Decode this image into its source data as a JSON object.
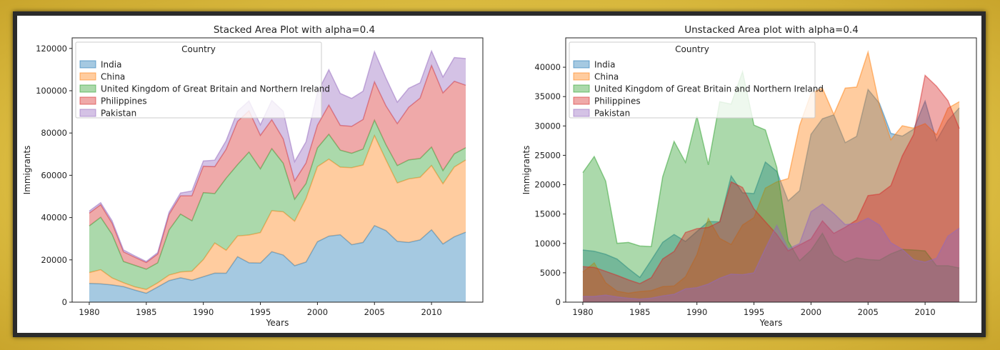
{
  "chart_data": [
    {
      "type": "area",
      "stacked": true,
      "alpha": 0.4,
      "title": "Stacked Area Plot with alpha=0.4",
      "xlabel": "Years",
      "ylabel": "Immigrants",
      "xlim": [
        1978.5,
        2014.5
      ],
      "ylim": [
        0,
        125000
      ],
      "xticks": [
        1980,
        1985,
        1990,
        1995,
        2000,
        2005,
        2010
      ],
      "yticks": [
        0,
        20000,
        40000,
        60000,
        80000,
        100000,
        120000
      ],
      "legend_title": "Country",
      "legend_position": "top-left",
      "grid": false
    },
    {
      "type": "area",
      "stacked": false,
      "alpha": 0.4,
      "title": "Unstacked Area plot with alpha=0.4",
      "xlabel": "Years",
      "ylabel": "Immigrants",
      "xlim": [
        1978.5,
        2014.5
      ],
      "ylim": [
        0,
        45000
      ],
      "xticks": [
        1980,
        1985,
        1990,
        1995,
        2000,
        2005,
        2010
      ],
      "yticks": [
        0,
        5000,
        10000,
        15000,
        20000,
        25000,
        30000,
        35000,
        40000
      ],
      "legend_title": "Country",
      "legend_position": "top-left",
      "grid": false
    }
  ],
  "years": [
    1980,
    1981,
    1982,
    1983,
    1984,
    1985,
    1986,
    1987,
    1988,
    1989,
    1990,
    1991,
    1992,
    1993,
    1994,
    1995,
    1996,
    1997,
    1998,
    1999,
    2000,
    2001,
    2002,
    2003,
    2004,
    2005,
    2006,
    2007,
    2008,
    2009,
    2010,
    2011,
    2012,
    2013
  ],
  "series": [
    {
      "name": "India",
      "color": "#1f77b4",
      "values": [
        8880,
        8670,
        8147,
        7338,
        5704,
        4211,
        7150,
        10189,
        11522,
        10343,
        12041,
        13734,
        13673,
        21496,
        18620,
        18489,
        23859,
        22268,
        17241,
        18974,
        28572,
        31223,
        31889,
        27155,
        28235,
        36210,
        33848,
        28742,
        28261,
        29456,
        34235,
        27509,
        30933,
        33087
      ]
    },
    {
      "name": "China",
      "color": "#ff7f0e",
      "values": [
        5123,
        6682,
        3308,
        1863,
        1527,
        1816,
        1960,
        2643,
        2758,
        4323,
        8076,
        14255,
        10846,
        9817,
        13128,
        14398,
        19415,
        20475,
        21049,
        30069,
        35529,
        36434,
        31961,
        36439,
        36619,
        42584,
        33518,
        27642,
        30037,
        29622,
        30391,
        28502,
        33024,
        34129
      ]
    },
    {
      "name": "United Kingdom of Great Britain and Northern Ireland",
      "color": "#2ca02c",
      "values": [
        22045,
        24796,
        20620,
        10015,
        10170,
        9564,
        9470,
        21337,
        27359,
        23795,
        31668,
        23380,
        34123,
        33720,
        39231,
        30145,
        29322,
        22965,
        10367,
        7045,
        8840,
        11728,
        8046,
        6797,
        7533,
        7258,
        7140,
        8216,
        8979,
        8876,
        8724,
        6204,
        6195,
        5827
      ]
    },
    {
      "name": "Philippines",
      "color": "#d62728",
      "values": [
        6051,
        5921,
        5249,
        4562,
        3801,
        3150,
        4166,
        7360,
        8639,
        11865,
        12509,
        12718,
        13670,
        20479,
        19532,
        15864,
        13692,
        11549,
        8735,
        9734,
        10763,
        13836,
        11707,
        12758,
        14004,
        18139,
        18400,
        19837,
        24887,
        28573,
        38617,
        36765,
        34315,
        29544
      ]
    },
    {
      "name": "Pakistan",
      "color": "#9467bd",
      "values": [
        978,
        972,
        1201,
        900,
        668,
        514,
        691,
        1072,
        1334,
        2261,
        2470,
        3079,
        4071,
        4777,
        4666,
        4994,
        9125,
        13073,
        9068,
        9979,
        15400,
        16708,
        15110,
        13205,
        13399,
        14314,
        13127,
        10124,
        8994,
        7217,
        6811,
        7468,
        11227,
        12603
      ]
    }
  ]
}
